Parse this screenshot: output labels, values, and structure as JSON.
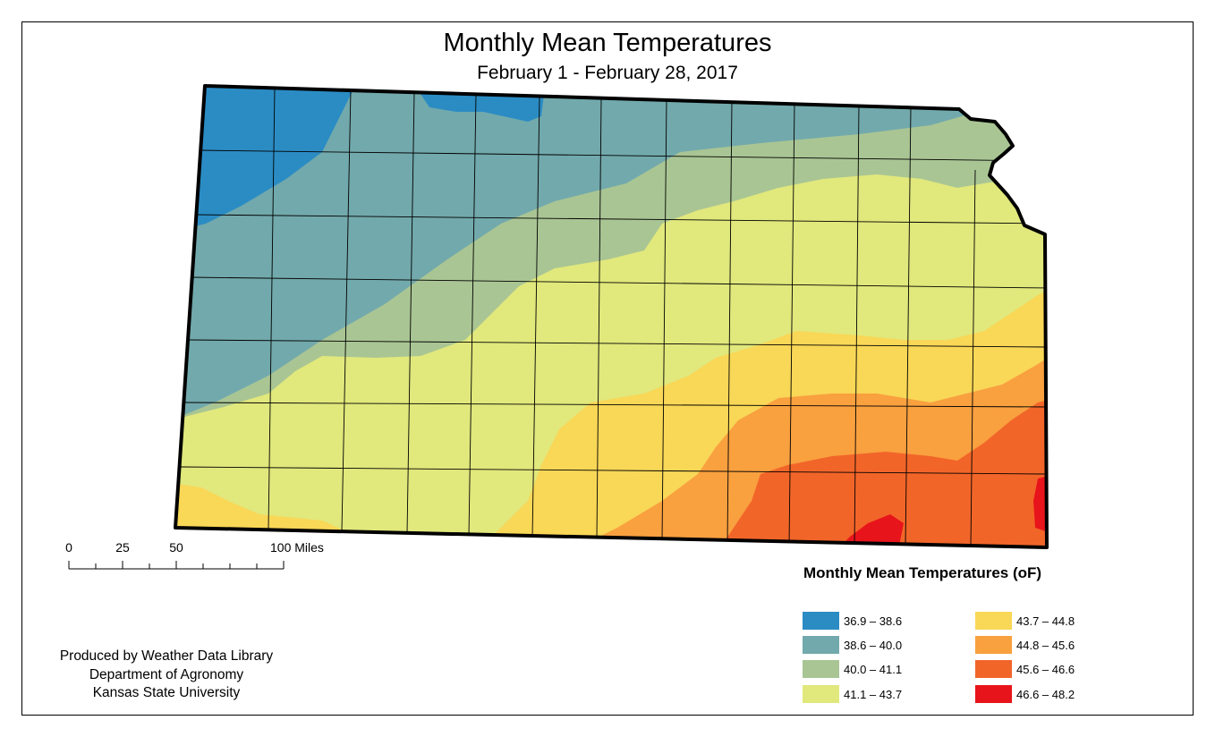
{
  "map": {
    "title": "Monthly Mean Temperatures",
    "subtitle": "February 1 - February 28, 2017",
    "region": "Kansas"
  },
  "scale_bar": {
    "labels": [
      "0",
      "25",
      "50",
      "100 Miles"
    ]
  },
  "credits": [
    "Produced by Weather Data Library",
    "Department of Agronomy",
    "Kansas State University"
  ],
  "legend": {
    "title": "Monthly Mean Temperatures (oF)",
    "items": [
      {
        "label": "36.9 – 38.6",
        "color": "#2b8cc4"
      },
      {
        "label": "38.6 – 40.0",
        "color": "#72a9ac"
      },
      {
        "label": "40.0 – 41.1",
        "color": "#a9c594"
      },
      {
        "label": "41.1 – 43.7",
        "color": "#e1e87c"
      },
      {
        "label": "43.7 – 44.8",
        "color": "#f9d757"
      },
      {
        "label": "44.8 – 45.6",
        "color": "#f9a03f"
      },
      {
        "label": "45.6 – 46.6",
        "color": "#f26529"
      },
      {
        "label": "46.6 – 48.2",
        "color": "#e8141b"
      }
    ]
  }
}
